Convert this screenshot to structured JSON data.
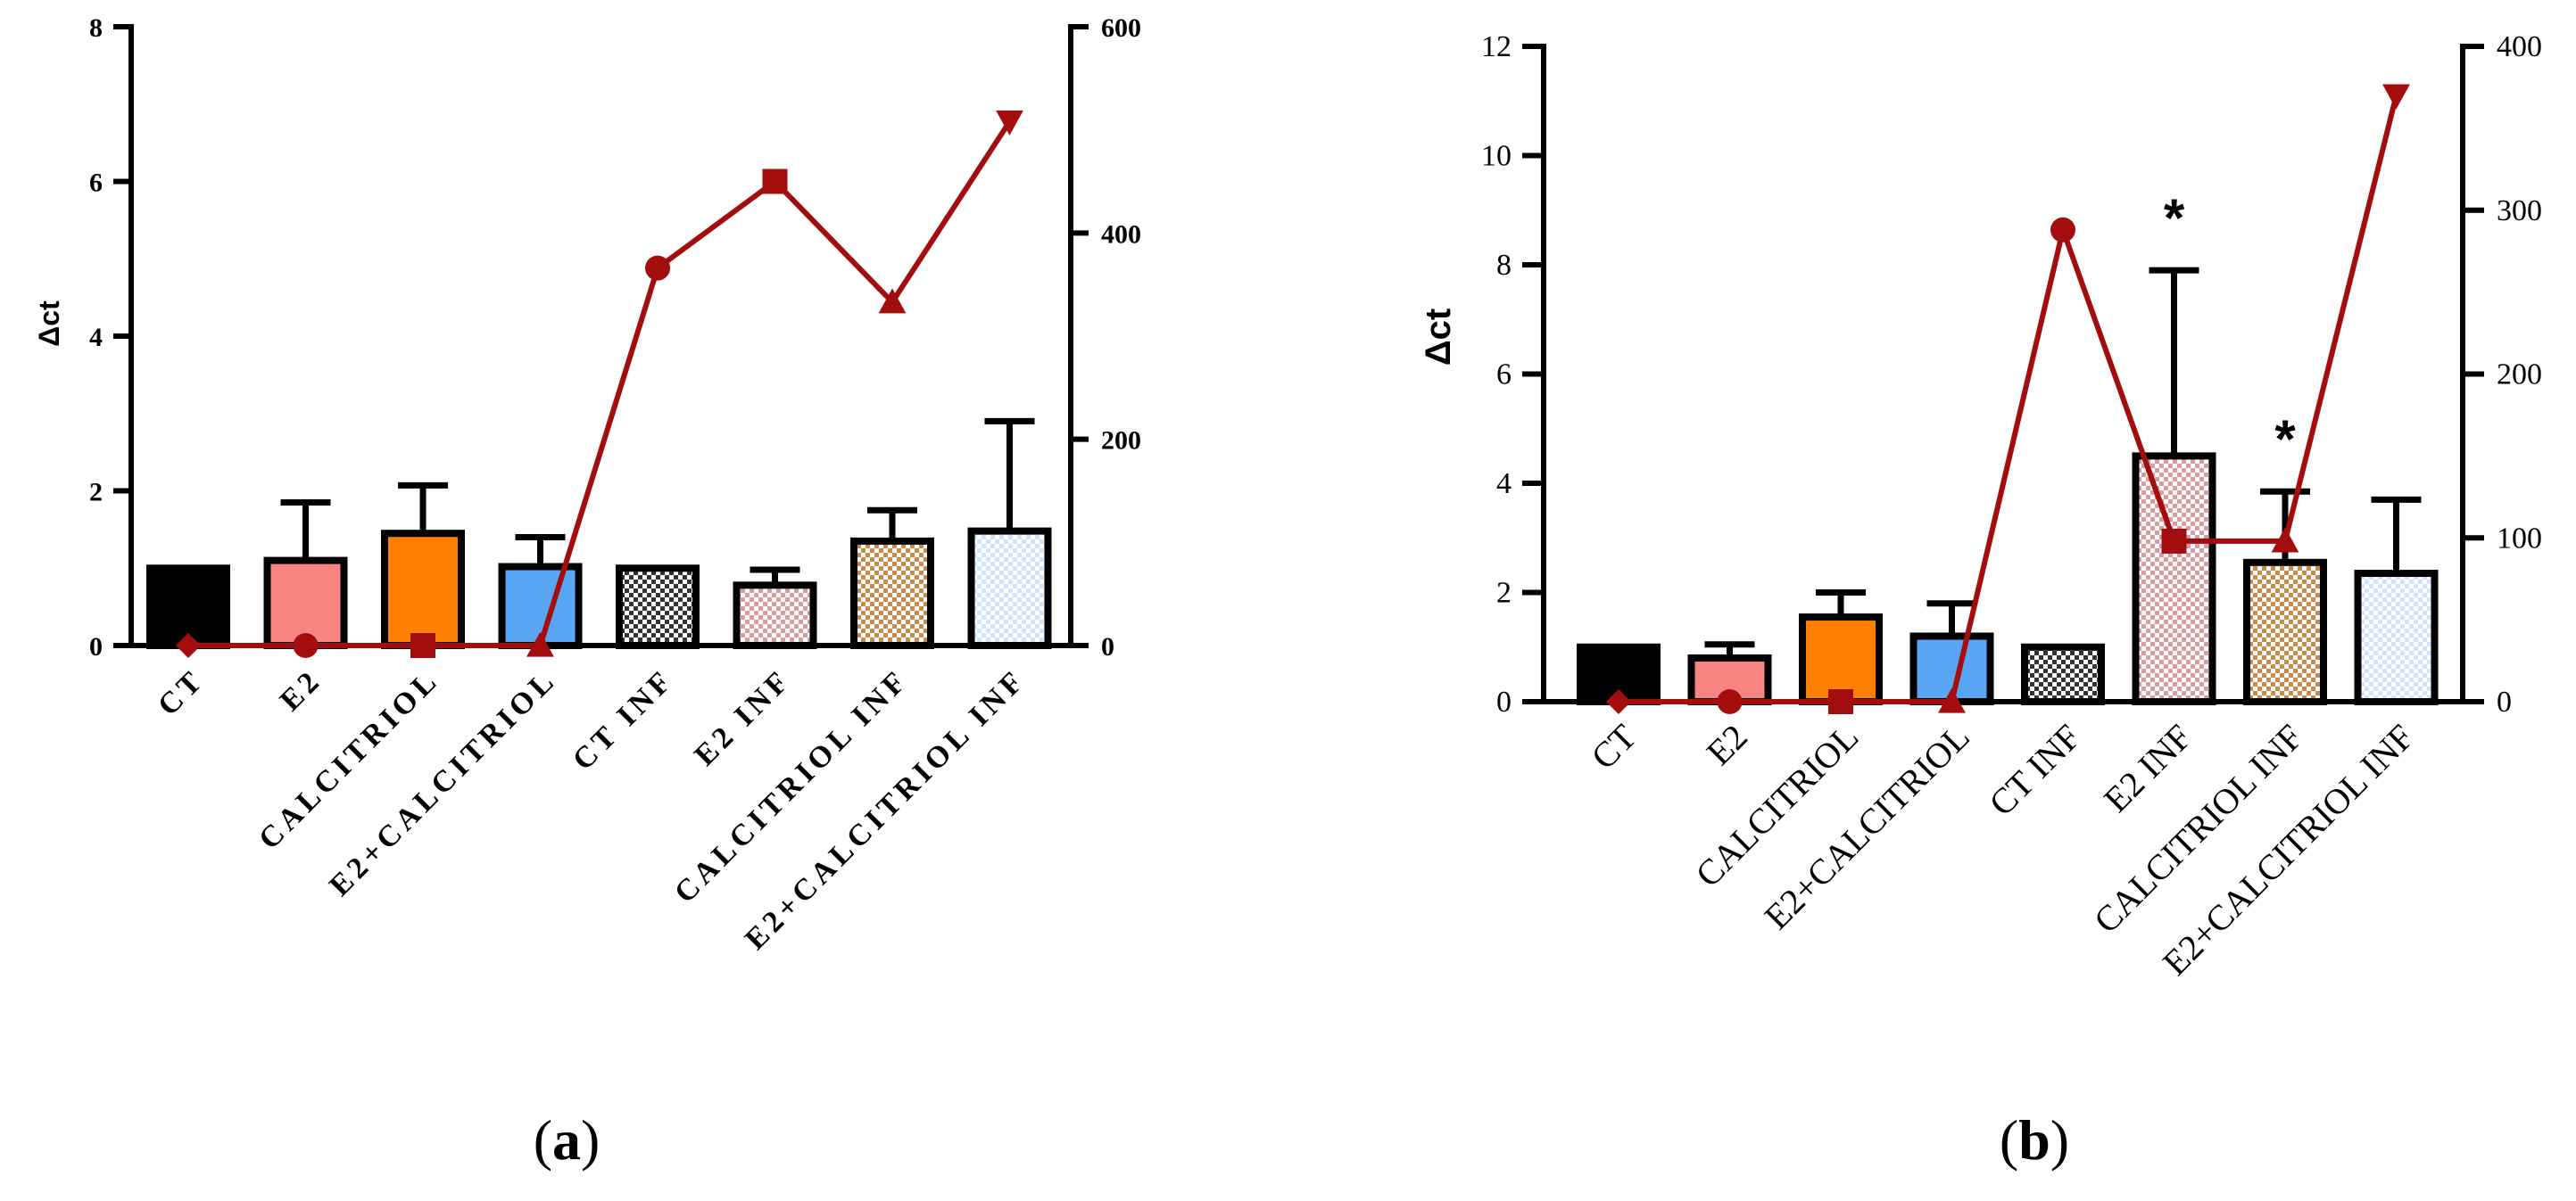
{
  "colors": {
    "bar_fill": [
      "#000000",
      "#f98583",
      "#ff8000",
      "#5aa5f3",
      "#333333",
      "#d89b9f",
      "#c98a4a",
      "#d0e4fb"
    ],
    "bar_pattern": [
      "solid",
      "solid",
      "solid",
      "solid",
      "checker",
      "checker",
      "checker",
      "checker"
    ],
    "line": "#a30d0d"
  },
  "chart_data": [
    {
      "panel_label": "a",
      "type": "bar",
      "categories": [
        "CT",
        "E2",
        "CALCITRIOL",
        "E2+CALCITRIOL",
        "CT INF",
        "E2 INF",
        "CALCITRIOL INF",
        "E2+CALCITRIOL INF"
      ],
      "ylabel": "Δct",
      "ylim": [
        0,
        8
      ],
      "yticks": [
        "0",
        "2",
        "4",
        "6",
        "8"
      ],
      "values": [
        1.0,
        1.1,
        1.45,
        1.02,
        1.0,
        0.78,
        1.35,
        1.48
      ],
      "error_upper": [
        1.0,
        1.85,
        2.07,
        1.4,
        1.0,
        0.98,
        1.75,
        2.9
      ],
      "annotations": [],
      "secondary_axis": {
        "ylim": [
          0,
          600
        ],
        "yticks": [
          "0",
          "200",
          "400",
          "600"
        ],
        "line_values": [
          0,
          0,
          0,
          0,
          366,
          450,
          333,
          508
        ],
        "markers": [
          "diamond",
          "circle",
          "square",
          "triangle",
          "circle",
          "square",
          "triangle",
          "triangle-down"
        ]
      }
    },
    {
      "panel_label": "b",
      "type": "bar",
      "categories": [
        "CT",
        "E2",
        "CALCITRIOL",
        "E2+CALCITRIOL",
        "CT INF",
        "E2 INF",
        "CALCITRIOL INF",
        "E2+CALCITRIOL INF"
      ],
      "ylabel": "Δct",
      "ylim": [
        0,
        12
      ],
      "yticks": [
        "0",
        "2",
        "4",
        "6",
        "8",
        "10",
        "12"
      ],
      "values": [
        1.0,
        0.8,
        1.55,
        1.2,
        1.0,
        4.5,
        2.55,
        2.35
      ],
      "error_upper": [
        1.0,
        1.05,
        2.0,
        1.8,
        1.0,
        7.9,
        3.85,
        3.7
      ],
      "annotations": [
        "",
        "",
        "",
        "",
        "",
        "*",
        "*",
        ""
      ],
      "secondary_axis": {
        "ylim": [
          0,
          400
        ],
        "yticks": [
          "0",
          "100",
          "200",
          "300",
          "400"
        ],
        "line_values": [
          0,
          0,
          0,
          0,
          288,
          98,
          98,
          370
        ],
        "markers": [
          "diamond",
          "circle",
          "square",
          "triangle",
          "circle",
          "square",
          "triangle",
          "triangle-down"
        ]
      }
    }
  ]
}
